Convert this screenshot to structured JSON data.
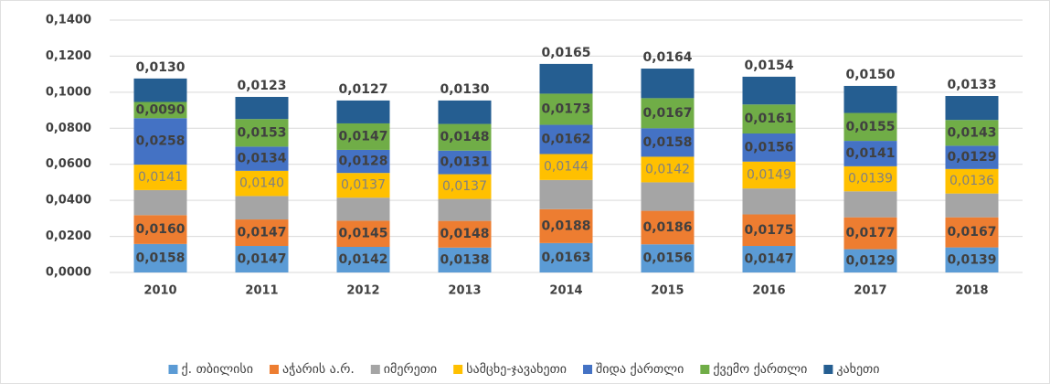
{
  "chart_data": {
    "type": "stacked_bar",
    "categories": [
      "2010",
      "2011",
      "2012",
      "2013",
      "2014",
      "2015",
      "2016",
      "2017",
      "2018"
    ],
    "ylim": [
      0,
      0.14
    ],
    "yticks": [
      {
        "value": 0,
        "label": "0,0000"
      },
      {
        "value": 0.02,
        "label": "0,0200"
      },
      {
        "value": 0.04,
        "label": "0,0400"
      },
      {
        "value": 0.06,
        "label": "0,0600"
      },
      {
        "value": 0.08,
        "label": "0,0800"
      },
      {
        "value": 0.1,
        "label": "0,1000"
      },
      {
        "value": 0.12,
        "label": "0,1200"
      },
      {
        "value": 0.14,
        "label": "0,1400"
      }
    ],
    "grid": true,
    "legend": "bottom",
    "series": [
      {
        "name": "ქ. თბილისი",
        "color": "#5b9bd5",
        "values": [
          0.0158,
          0.0147,
          0.0142,
          0.0138,
          0.0163,
          0.0156,
          0.0147,
          0.0129,
          0.0139
        ],
        "value_labels": [
          "0,0158",
          "0,0147",
          "0,0142",
          "0,0138",
          "0,0163",
          "0,0156",
          "0,0147",
          "0,0129",
          "0,0139"
        ]
      },
      {
        "name": "აჭარის ა.რ.",
        "color": "#ed7d31",
        "values": [
          0.016,
          0.0147,
          0.0145,
          0.0148,
          0.0188,
          0.0186,
          0.0175,
          0.0177,
          0.0167
        ],
        "value_labels": [
          "0,0160",
          "0,0147",
          "0,0145",
          "0,0148",
          "0,0188",
          "0,0186",
          "0,0175",
          "0,0177",
          "0,0167"
        ]
      },
      {
        "name": "იმერეთი",
        "color": "#a5a5a5",
        "values": [
          0.0139,
          0.013,
          0.0128,
          0.0122,
          0.0162,
          0.0158,
          0.0144,
          0.0144,
          0.0132
        ]
      },
      {
        "name": "სამცხე-ჯავახეთი",
        "color": "#ffc000",
        "values": [
          0.0141,
          0.014,
          0.0137,
          0.0137,
          0.0144,
          0.0142,
          0.0149,
          0.0139,
          0.0136
        ],
        "value_labels": [
          "0,0141",
          "0,0140",
          "0,0137",
          "0,0137",
          "0,0144",
          "0,0142",
          "0,0149",
          "0,0139",
          "0,0136"
        ]
      },
      {
        "name": "შიდა ქართლი",
        "color": "#4472c4",
        "values": [
          0.0258,
          0.0134,
          0.0128,
          0.0131,
          0.0162,
          0.0158,
          0.0156,
          0.0141,
          0.0129
        ],
        "value_labels": [
          "0,0258",
          "0,0134",
          "0,0128",
          "0,0131",
          "0,0162",
          "0,0158",
          "0,0156",
          "0,0141",
          "0,0129"
        ]
      },
      {
        "name": "ქვემო ქართლი",
        "color": "#70ad47",
        "values": [
          0.009,
          0.0153,
          0.0147,
          0.0148,
          0.0173,
          0.0167,
          0.0161,
          0.0155,
          0.0143
        ],
        "value_labels": [
          "0,0090",
          "0,0153",
          "0,0147",
          "0,0148",
          "0,0173",
          "0,0167",
          "0,0161",
          "0,0155",
          "0,0143"
        ]
      },
      {
        "name": "კახეთი",
        "color": "#255e91",
        "values": [
          0.013,
          0.0123,
          0.0127,
          0.013,
          0.0165,
          0.0164,
          0.0154,
          0.015,
          0.0133
        ],
        "value_labels": [
          "0,0130",
          "0,0123",
          "0,0127",
          "0,0130",
          "0,0165",
          "0,0164",
          "0,0154",
          "0,0150",
          "0,0133"
        ]
      }
    ]
  }
}
